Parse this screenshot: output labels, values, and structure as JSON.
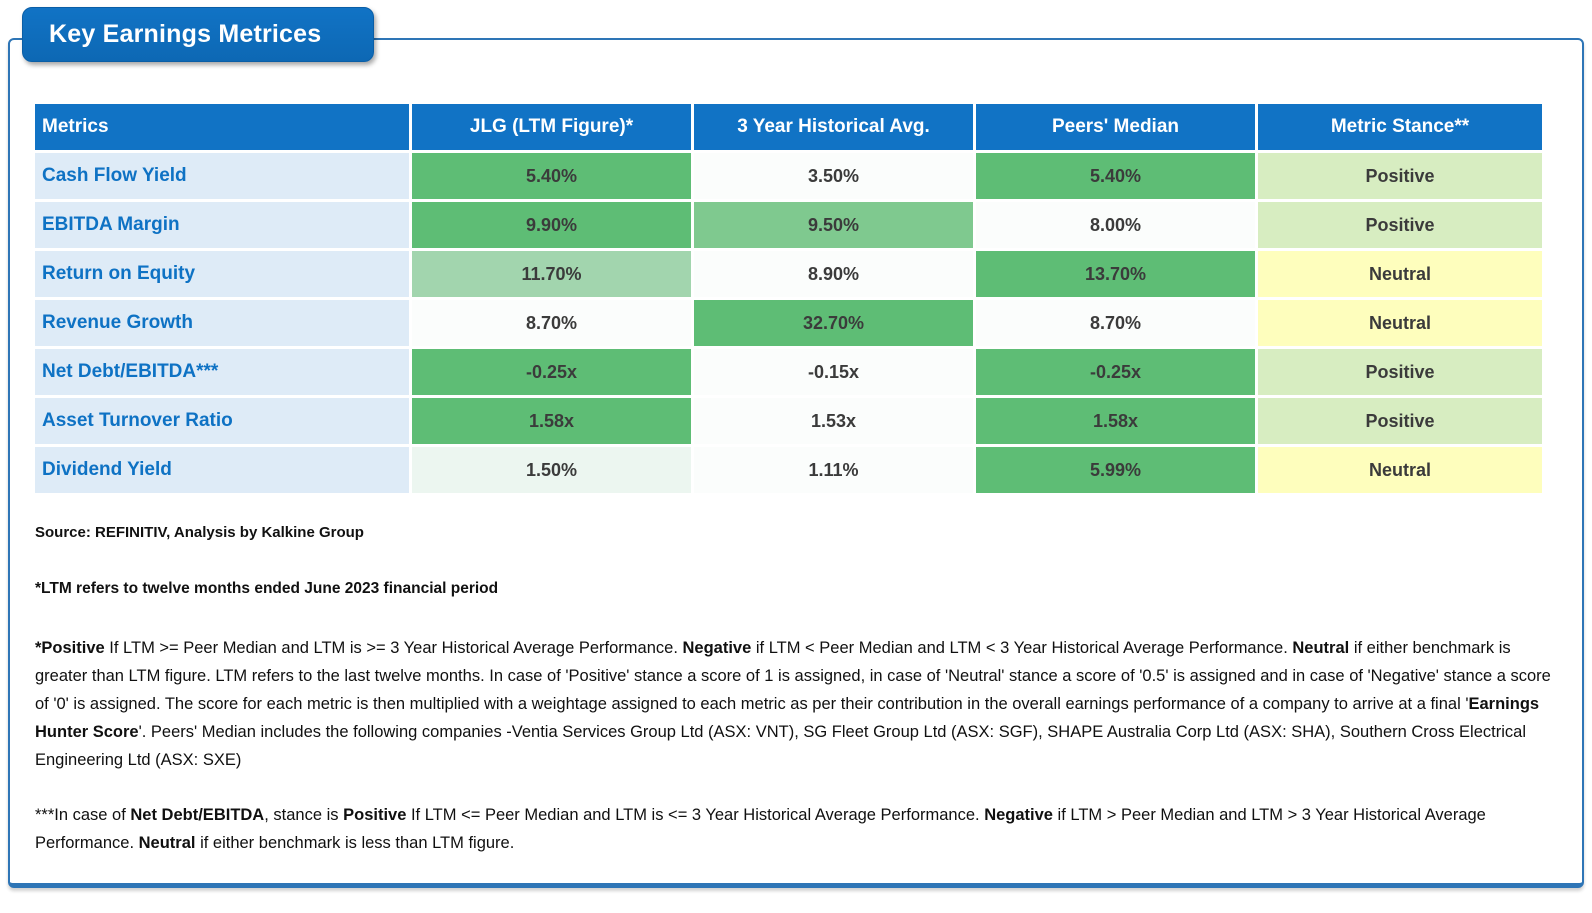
{
  "title": "Key Earnings Metrices",
  "colors": {
    "header_blue": "#1173C5",
    "border_blue": "#2E75B6",
    "label_bg": "#DEEBF7",
    "label_text": "#0E72C4",
    "value_text": "#3B3B3B",
    "green_strong": "#5EBD75",
    "green_medium": "#7FC98F",
    "green_light": "#A2D5AE",
    "green_pale": "#ECF6F0",
    "white_cell": "#FBFDFC",
    "stance_positive_bg": "#D7EDC1",
    "stance_neutral_bg": "#FEFEBD"
  },
  "table": {
    "columns": [
      "Metrics",
      "JLG (LTM Figure)*",
      "3 Year Historical Avg.",
      "Peers' Median",
      "Metric Stance**"
    ],
    "rows": [
      {
        "metric": "Cash Flow Yield",
        "jlg": "5.40%",
        "jlg_bg": "green_strong",
        "hist": "3.50%",
        "hist_bg": "white_cell",
        "peers": "5.40%",
        "peers_bg": "green_strong",
        "stance": "Positive"
      },
      {
        "metric": "EBITDA Margin",
        "jlg": "9.90%",
        "jlg_bg": "green_strong",
        "hist": "9.50%",
        "hist_bg": "green_medium",
        "peers": "8.00%",
        "peers_bg": "white_cell",
        "stance": "Positive"
      },
      {
        "metric": "Return on Equity",
        "jlg": "11.70%",
        "jlg_bg": "green_light",
        "hist": "8.90%",
        "hist_bg": "white_cell",
        "peers": "13.70%",
        "peers_bg": "green_strong",
        "stance": "Neutral"
      },
      {
        "metric": "Revenue Growth",
        "jlg": "8.70%",
        "jlg_bg": "white_cell",
        "hist": "32.70%",
        "hist_bg": "green_strong",
        "peers": "8.70%",
        "peers_bg": "white_cell",
        "stance": "Neutral"
      },
      {
        "metric": "Net Debt/EBITDA***",
        "jlg": "-0.25x",
        "jlg_bg": "green_strong",
        "hist": "-0.15x",
        "hist_bg": "white_cell",
        "peers": "-0.25x",
        "peers_bg": "green_strong",
        "stance": "Positive"
      },
      {
        "metric": "Asset Turnover Ratio",
        "jlg": "1.58x",
        "jlg_bg": "green_strong",
        "hist": "1.53x",
        "hist_bg": "white_cell",
        "peers": "1.58x",
        "peers_bg": "green_strong",
        "stance": "Positive"
      },
      {
        "metric": "Dividend Yield",
        "jlg": "1.50%",
        "jlg_bg": "green_pale",
        "hist": "1.11%",
        "hist_bg": "white_cell",
        "peers": "5.99%",
        "peers_bg": "green_strong",
        "stance": "Neutral"
      }
    ]
  },
  "notes": {
    "source": "Source: REFINITIV, Analysis by Kalkine Group",
    "ltm": "*LTM refers to twelve months ended June 2023 financial period",
    "stance_definition": [
      {
        "t": "*Positive",
        "b": true
      },
      {
        "t": " If LTM >= Peer Median and LTM is >= 3 Year Historical Average Performance. ",
        "b": false
      },
      {
        "t": "Negative",
        "b": true
      },
      {
        "t": " if LTM < Peer Median and LTM < 3 Year Historical Average Performance. ",
        "b": false
      },
      {
        "t": "Neutral",
        "b": true
      },
      {
        "t": " if either benchmark is greater than LTM figure. LTM refers to the last twelve months. In case of 'Positive' stance a score of 1 is assigned, in case of 'Neutral' stance a score of '0.5' is assigned and in case of 'Negative' stance a score of '0' is assigned. The score for each metric is then multiplied with a weightage assigned to each metric as per their contribution in the overall earnings performance of a company to arrive at a final '",
        "b": false
      },
      {
        "t": "Earnings Hunter Score",
        "b": true
      },
      {
        "t": "'. Peers' Median includes the following companies -Ventia Services Group Ltd  (ASX: VNT), SG Fleet Group Ltd (ASX: SGF), SHAPE Australia Corp Ltd (ASX: SHA), Southern Cross Electrical Engineering Ltd (ASX: SXE)",
        "b": false
      }
    ],
    "net_debt_definition": [
      {
        "t": "***In case of ",
        "b": false
      },
      {
        "t": "Net Debt/EBITDA",
        "b": true
      },
      {
        "t": ", stance is ",
        "b": false
      },
      {
        "t": "Positive",
        "b": true
      },
      {
        "t": " If LTM <= Peer Median and LTM is <= 3 Year Historical Average Performance. ",
        "b": false
      },
      {
        "t": "Negative",
        "b": true
      },
      {
        "t": " if LTM > Peer Median and LTM > 3 Year Historical Average Performance. ",
        "b": false
      },
      {
        "t": "Neutral",
        "b": true
      },
      {
        "t": " if either benchmark is less than LTM figure.",
        "b": false
      }
    ]
  }
}
